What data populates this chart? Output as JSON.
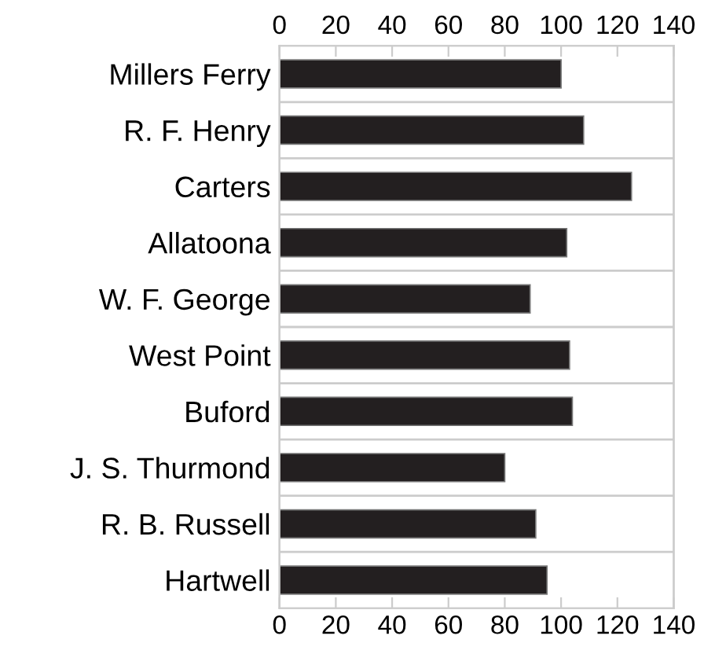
{
  "chart_data": {
    "type": "bar",
    "orientation": "horizontal",
    "categories": [
      "Millers Ferry",
      "R. F. Henry",
      "Carters",
      "Allatoona",
      "W. F. George",
      "West Point",
      "Buford",
      "J. S. Thurmond",
      "R. B. Russell",
      "Hartwell"
    ],
    "values": [
      100,
      108,
      125,
      102,
      89,
      103,
      104,
      80,
      91,
      95
    ],
    "color": "#231f20",
    "xlim": [
      0,
      140
    ],
    "xticks": [
      0,
      20,
      40,
      60,
      80,
      100,
      120,
      140
    ],
    "x2lim": [
      0,
      140
    ],
    "x2ticks": [
      0,
      20,
      40,
      60,
      80,
      100,
      120,
      140
    ],
    "grid": "y"
  }
}
